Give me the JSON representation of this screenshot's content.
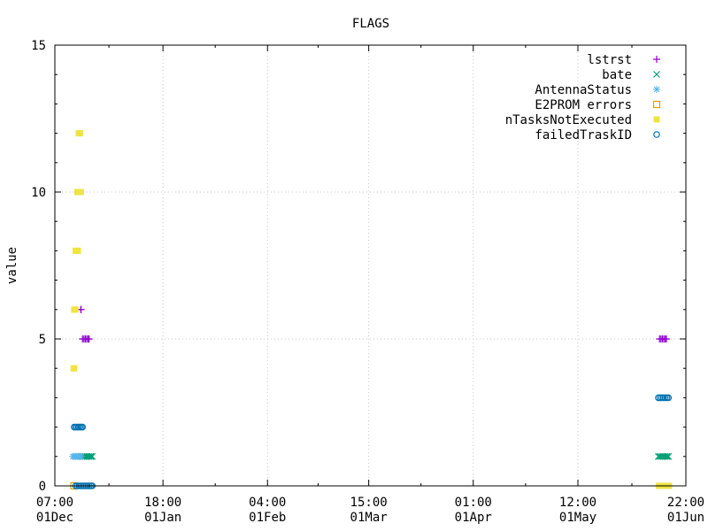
{
  "chart_data": {
    "type": "scatter",
    "title": "FLAGS",
    "xlabel": "",
    "ylabel": "value",
    "ylim": [
      0,
      15
    ],
    "xlim": [
      "2023-12-01T07:00",
      "2024-06-01T22:00"
    ],
    "x_ticks": [
      {
        "t": "2023-12-01T07:00",
        "line1": "07:00",
        "line2": "01Dec"
      },
      {
        "t": "2024-01-01T18:00",
        "line1": "18:00",
        "line2": "01Jan"
      },
      {
        "t": "2024-02-01T04:00",
        "line1": "04:00",
        "line2": "01Feb"
      },
      {
        "t": "2024-03-01T15:00",
        "line1": "15:00",
        "line2": "01Mar"
      },
      {
        "t": "2024-04-01T01:00",
        "line1": "01:00",
        "line2": "01Apr"
      },
      {
        "t": "2024-05-01T12:00",
        "line1": "12:00",
        "line2": "01May"
      },
      {
        "t": "2024-06-01T22:00",
        "line1": "22:00",
        "line2": "01Jun"
      }
    ],
    "y_ticks": [
      0,
      5,
      10,
      15
    ],
    "grid": true,
    "legend_position": "top-right",
    "series": [
      {
        "name": "lstrst",
        "marker": "plus",
        "color": "#9400d3",
        "points": [
          {
            "x": "2023-12-08T20:00",
            "y": 6
          },
          {
            "x": "2023-12-08T22:00",
            "y": 6
          },
          {
            "x": "2023-12-09T08:00",
            "y": 5
          },
          {
            "x": "2023-12-09T18:00",
            "y": 5
          },
          {
            "x": "2023-12-10T04:00",
            "y": 5
          },
          {
            "x": "2023-12-10T14:00",
            "y": 5
          },
          {
            "x": "2023-12-11T00:00",
            "y": 5
          },
          {
            "x": "2023-12-11T06:00",
            "y": 5
          },
          {
            "x": "2024-05-25T06:00",
            "y": 5
          },
          {
            "x": "2024-05-25T16:00",
            "y": 5
          },
          {
            "x": "2024-05-26T02:00",
            "y": 5
          },
          {
            "x": "2024-05-26T12:00",
            "y": 5
          },
          {
            "x": "2024-05-26T22:00",
            "y": 5
          },
          {
            "x": "2024-05-27T06:00",
            "y": 5
          }
        ]
      },
      {
        "name": "bate",
        "marker": "cross",
        "color": "#009e73",
        "points": [
          {
            "x": "2023-12-09T06:00",
            "y": 1
          },
          {
            "x": "2023-12-09T18:00",
            "y": 1
          },
          {
            "x": "2023-12-10T06:00",
            "y": 1
          },
          {
            "x": "2023-12-10T18:00",
            "y": 1
          },
          {
            "x": "2023-12-11T06:00",
            "y": 1
          },
          {
            "x": "2023-12-11T18:00",
            "y": 1
          },
          {
            "x": "2023-12-12T04:00",
            "y": 1
          },
          {
            "x": "2024-05-24T22:00",
            "y": 1
          },
          {
            "x": "2024-05-25T10:00",
            "y": 1
          },
          {
            "x": "2024-05-25T22:00",
            "y": 1
          },
          {
            "x": "2024-05-26T10:00",
            "y": 1
          },
          {
            "x": "2024-05-26T22:00",
            "y": 1
          },
          {
            "x": "2024-05-27T10:00",
            "y": 1
          },
          {
            "x": "2024-05-27T20:00",
            "y": 1
          }
        ]
      },
      {
        "name": "AntennaStatus",
        "marker": "star",
        "color": "#56b4e9",
        "points": [
          {
            "x": "2023-12-06T12:00",
            "y": 1
          },
          {
            "x": "2023-12-06T22:00",
            "y": 1
          },
          {
            "x": "2023-12-07T08:00",
            "y": 1
          },
          {
            "x": "2023-12-07T18:00",
            "y": 1
          },
          {
            "x": "2023-12-08T04:00",
            "y": 1
          },
          {
            "x": "2023-12-08T14:00",
            "y": 1
          },
          {
            "x": "2023-12-09T00:00",
            "y": 1
          }
        ]
      },
      {
        "name": "E2PROM errors",
        "marker": "square",
        "color": "#e69f00",
        "points": [
          {
            "x": "2023-12-06T20:00",
            "y": 0
          }
        ]
      },
      {
        "name": "nTasksNotExecuted",
        "marker": "filled-square",
        "color": "#f0e442",
        "points": [
          {
            "x": "2023-12-08T06:00",
            "y": 12
          },
          {
            "x": "2023-12-08T14:00",
            "y": 12
          },
          {
            "x": "2023-12-07T20:00",
            "y": 10
          },
          {
            "x": "2023-12-08T04:00",
            "y": 10
          },
          {
            "x": "2023-12-08T12:00",
            "y": 10
          },
          {
            "x": "2023-12-08T20:00",
            "y": 10
          },
          {
            "x": "2023-12-07T08:00",
            "y": 8
          },
          {
            "x": "2023-12-07T16:00",
            "y": 8
          },
          {
            "x": "2023-12-08T00:00",
            "y": 8
          },
          {
            "x": "2023-12-06T22:00",
            "y": 6
          },
          {
            "x": "2023-12-07T06:00",
            "y": 6
          },
          {
            "x": "2023-12-06T18:00",
            "y": 4
          },
          {
            "x": "2023-12-06T20:00",
            "y": 4
          },
          {
            "x": "2024-05-25T02:00",
            "y": 0
          },
          {
            "x": "2024-05-25T14:00",
            "y": 0
          },
          {
            "x": "2024-05-26T02:00",
            "y": 0
          },
          {
            "x": "2024-05-26T14:00",
            "y": 0
          },
          {
            "x": "2024-05-27T02:00",
            "y": 0
          },
          {
            "x": "2024-05-27T14:00",
            "y": 0
          },
          {
            "x": "2024-05-28T00:00",
            "y": 0
          }
        ]
      },
      {
        "name": "failedTraskID",
        "marker": "circle",
        "color": "#0072b2",
        "points": [
          {
            "x": "2023-12-06T22:00",
            "y": 2
          },
          {
            "x": "2023-12-07T08:00",
            "y": 2
          },
          {
            "x": "2023-12-07T18:00",
            "y": 2
          },
          {
            "x": "2023-12-08T04:00",
            "y": 2
          },
          {
            "x": "2023-12-08T14:00",
            "y": 2
          },
          {
            "x": "2023-12-09T00:00",
            "y": 2
          },
          {
            "x": "2023-12-09T08:00",
            "y": 2
          },
          {
            "x": "2023-12-07T08:00",
            "y": 0
          },
          {
            "x": "2023-12-07T20:00",
            "y": 0
          },
          {
            "x": "2023-12-08T08:00",
            "y": 0
          },
          {
            "x": "2023-12-08T20:00",
            "y": 0
          },
          {
            "x": "2023-12-09T08:00",
            "y": 0
          },
          {
            "x": "2023-12-09T20:00",
            "y": 0
          },
          {
            "x": "2023-12-10T08:00",
            "y": 0
          },
          {
            "x": "2023-12-10T20:00",
            "y": 0
          },
          {
            "x": "2023-12-11T08:00",
            "y": 0
          },
          {
            "x": "2023-12-11T20:00",
            "y": 0
          },
          {
            "x": "2023-12-12T04:00",
            "y": 0
          },
          {
            "x": "2024-05-24T22:00",
            "y": 3
          },
          {
            "x": "2024-05-25T10:00",
            "y": 3
          },
          {
            "x": "2024-05-25T22:00",
            "y": 3
          },
          {
            "x": "2024-05-26T10:00",
            "y": 3
          },
          {
            "x": "2024-05-26T22:00",
            "y": 3
          },
          {
            "x": "2024-05-27T10:00",
            "y": 3
          },
          {
            "x": "2024-05-27T20:00",
            "y": 3
          }
        ]
      }
    ]
  }
}
